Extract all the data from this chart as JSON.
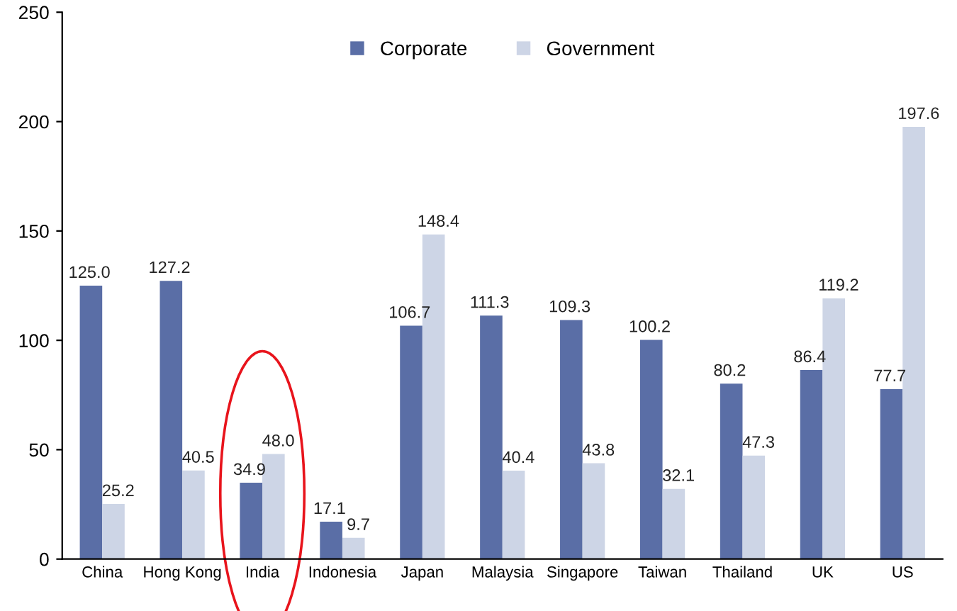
{
  "chart_data": {
    "type": "bar",
    "categories": [
      "China",
      "Hong Kong",
      "India",
      "Indonesia",
      "Japan",
      "Malaysia",
      "Singapore",
      "Taiwan",
      "Thailand",
      "UK",
      "US"
    ],
    "series": [
      {
        "name": "Corporate",
        "color": "#5a6ea6",
        "values": [
          125.0,
          127.2,
          34.9,
          17.1,
          106.7,
          111.3,
          109.3,
          100.2,
          80.2,
          86.4,
          77.7
        ],
        "value_labels": [
          "125.0",
          "127.2",
          "34.9",
          "17.1",
          "106.7",
          "111.3",
          "109.3",
          "100.2",
          "80.2",
          "86.4",
          "77.7"
        ]
      },
      {
        "name": "Government",
        "color": "#cdd5e6",
        "values": [
          25.2,
          40.5,
          48.0,
          9.7,
          148.4,
          40.4,
          43.8,
          32.1,
          47.3,
          119.2,
          197.6
        ],
        "value_labels": [
          "25.2",
          "40.5",
          "48.0",
          "9.7",
          "148.4",
          "40.4",
          "43.8",
          "32.1",
          "47.3",
          "119.2",
          "197.6"
        ]
      }
    ],
    "ylim": [
      0,
      250
    ],
    "yticks": [
      0,
      50,
      100,
      150,
      200,
      250
    ],
    "grid": false,
    "legend": "top"
  }
}
